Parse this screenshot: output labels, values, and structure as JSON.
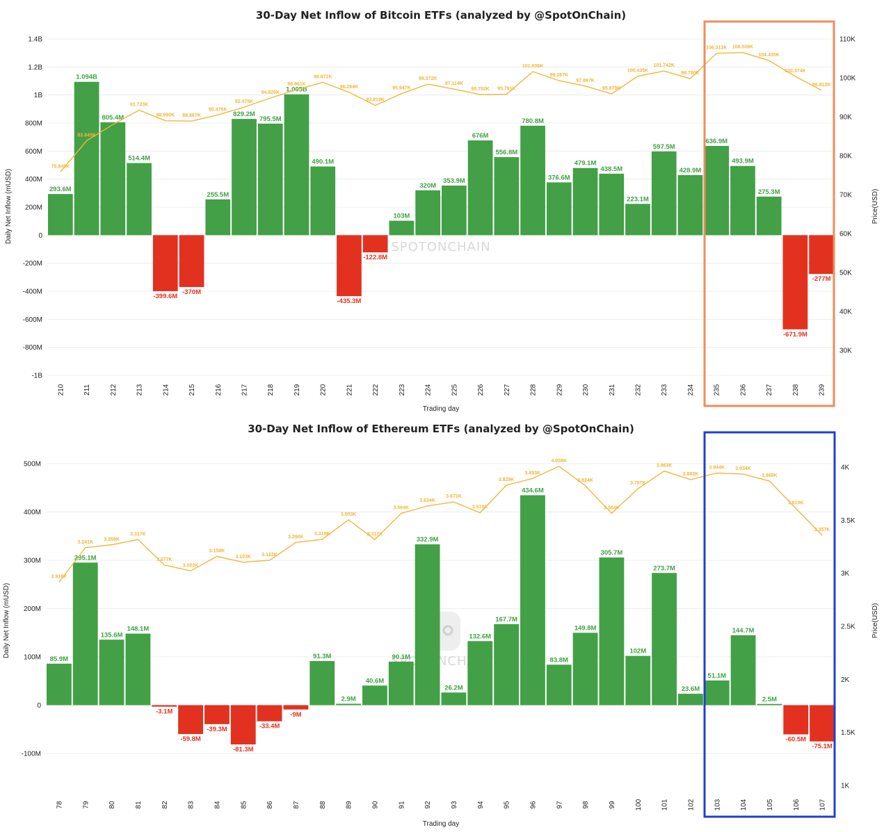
{
  "watermark": "SPOTONCHAIN",
  "colors": {
    "positive": "#43a047",
    "negative": "#e2321f",
    "price_line": "#f0b63a",
    "btc_highlight": "#ef8c5a",
    "eth_highlight": "#1f3fd0"
  },
  "chart_data": [
    {
      "type": "bar",
      "title": "30-Day Net Inflow of Bitcoin ETFs (analyzed by @SpotOnChain)",
      "xlabel": "Trading day",
      "ylabel": "Daily Net Inflow (mUSD)",
      "y2label": "Price(USD)",
      "categories": [
        "210",
        "211",
        "212",
        "213",
        "214",
        "215",
        "216",
        "217",
        "218",
        "219",
        "220",
        "221",
        "222",
        "223",
        "224",
        "225",
        "226",
        "227",
        "228",
        "229",
        "230",
        "231",
        "232",
        "233",
        "234",
        "235",
        "236",
        "237",
        "238",
        "239"
      ],
      "ylim": [
        -1000,
        1400
      ],
      "yticks": [
        -1000,
        -800,
        -600,
        -400,
        -200,
        0,
        200,
        400,
        600,
        800,
        1000,
        1200,
        1400
      ],
      "ytick_labels": [
        "-1B",
        "-800M",
        "-600M",
        "-400M",
        "-200M",
        "0",
        "200M",
        "400M",
        "600M",
        "800M",
        "1B",
        "1.2B",
        "1.4B"
      ],
      "y2lim": [
        20000,
        112000
      ],
      "y2ticks": [
        30000,
        40000,
        50000,
        60000,
        70000,
        80000,
        90000,
        100000,
        110000
      ],
      "y2tick_labels": [
        "30K",
        "40K",
        "50K",
        "60K",
        "70K",
        "80K",
        "90K",
        "100K",
        "110K"
      ],
      "series": [
        {
          "type": "bar",
          "values": [
            293.6,
            1094,
            805.4,
            514.4,
            -399.6,
            -370,
            255.5,
            829.2,
            795.5,
            1005,
            490.1,
            -435.3,
            -122.8,
            103,
            320,
            353.9,
            676,
            556.8,
            780.8,
            376.6,
            479.1,
            438.5,
            223.1,
            597.5,
            428.9,
            636.9,
            493.9,
            275.3,
            -671.9,
            -277
          ],
          "labels": [
            "293.6M",
            "1.094B",
            "805.4M",
            "514.4M",
            "-399.6M",
            "-370M",
            "255.5M",
            "829.2M",
            "795.5M",
            "1.005B",
            "490.1M",
            "-435.3M",
            "-122.8M",
            "103M",
            "320M",
            "353.9M",
            "676M",
            "556.8M",
            "780.8M",
            "376.6M",
            "479.1M",
            "438.5M",
            "223.1M",
            "597.5M",
            "428.9M",
            "636.9M",
            "493.9M",
            "275.3M",
            "-671.9M",
            "-277M"
          ]
        },
        {
          "type": "line",
          "axis": "right",
          "values": [
            75845,
            83845,
            88000,
            91723,
            88990,
            88887,
            90476,
            92475,
            94820,
            96961,
            98871,
            96284,
            92919,
            95947,
            98372,
            97114,
            95702,
            95791,
            101606,
            99287,
            97897,
            95879,
            100435,
            101742,
            99780,
            106313,
            106509,
            104435,
            100374,
            96812
          ],
          "labels": [
            "75.845K",
            "83.845K",
            "",
            "91.723K",
            "88.990K",
            "88.887K",
            "90.476K",
            "92.475K",
            "94.820K",
            "96.961K",
            "98.871K",
            "96.284K",
            "92.919K",
            "95.947K",
            "98.372K",
            "97.114K",
            "95.702K",
            "95.791K",
            "101.606K",
            "99.287K",
            "97.897K",
            "95.879K",
            "100.435K",
            "101.742K",
            "99.780K",
            "106.313K",
            "106.509K",
            "104.435K",
            "100.374K",
            "96.812K"
          ]
        }
      ],
      "highlight_range": [
        "235",
        "239"
      ]
    },
    {
      "type": "bar",
      "title": "30-Day Net Inflow of Ethereum ETFs (analyzed by @SpotOnChain)",
      "xlabel": "Trading day",
      "ylabel": "Daily Net Inflow (mUSD)",
      "y2label": "Price(USD)",
      "categories": [
        "78",
        "79",
        "80",
        "81",
        "82",
        "83",
        "84",
        "85",
        "86",
        "87",
        "88",
        "89",
        "90",
        "91",
        "92",
        "93",
        "94",
        "95",
        "96",
        "97",
        "98",
        "99",
        "100",
        "101",
        "102",
        "103",
        "104",
        "105",
        "106",
        "107"
      ],
      "ylim": [
        -145,
        530
      ],
      "yticks": [
        -100,
        0,
        100,
        200,
        300,
        400,
        500
      ],
      "ytick_labels": [
        "-100M",
        "0",
        "100M",
        "200M",
        "300M",
        "400M",
        "500M"
      ],
      "y2lim": [
        950,
        4350
      ],
      "y2ticks": [
        1000,
        1500,
        2000,
        2500,
        3000,
        3500,
        4000
      ],
      "y2tick_labels": [
        "1K",
        "1.5K",
        "2K",
        "2.5K",
        "3K",
        "3.5K",
        "4K"
      ],
      "series": [
        {
          "type": "bar",
          "values": [
            85.9,
            295.1,
            135.6,
            148.1,
            -3.1,
            -59.8,
            -39.3,
            -81.3,
            -33.4,
            -9,
            91.3,
            2.9,
            40.6,
            90.1,
            332.9,
            26.2,
            132.6,
            167.7,
            434.6,
            83.8,
            149.8,
            305.7,
            102,
            273.7,
            23.6,
            51.1,
            144.7,
            2.5,
            -60.5,
            -75.1
          ],
          "labels": [
            "85.9M",
            "295.1M",
            "135.6M",
            "148.1M",
            "-3.1M",
            "-59.8M",
            "-39.3M",
            "-81.3M",
            "-33.4M",
            "-9M",
            "91.3M",
            "2.9M",
            "40.6M",
            "90.1M",
            "332.9M",
            "26.2M",
            "132.6M",
            "167.7M",
            "434.6M",
            "83.8M",
            "149.8M",
            "305.7M",
            "102M",
            "273.7M",
            "23.6M",
            "51.1M",
            "144.7M",
            "2.5M",
            "-60.5M",
            "-75.1M"
          ]
        },
        {
          "type": "line",
          "axis": "right",
          "values": [
            2916,
            3241,
            3268,
            3317,
            3077,
            3022,
            3158,
            3103,
            3122,
            3290,
            3319,
            3503,
            3317,
            3564,
            3634,
            3671,
            3570,
            3829,
            3893,
            4008,
            3824,
            3564,
            3797,
            3963,
            3882,
            3944,
            3934,
            3868,
            3610,
            3357
          ],
          "labels": [
            "2.916K",
            "3.241K",
            "3.268K",
            "3.317K",
            "3.077K",
            "3.022K",
            "3.158K",
            "3.103K",
            "3.122K",
            "3.290K",
            "3.319K",
            "3.503K",
            "3.317K",
            "3.564K",
            "3.634K",
            "3.671K",
            "3.570K",
            "3.829K",
            "3.893K",
            "4.008K",
            "3.824K",
            "3.564K",
            "3.797K",
            "3.963K",
            "3.882K",
            "3.944K",
            "3.934K",
            "3.868K",
            "3.610K",
            "3.357K"
          ]
        }
      ],
      "highlight_range": [
        "103",
        "107"
      ]
    }
  ]
}
